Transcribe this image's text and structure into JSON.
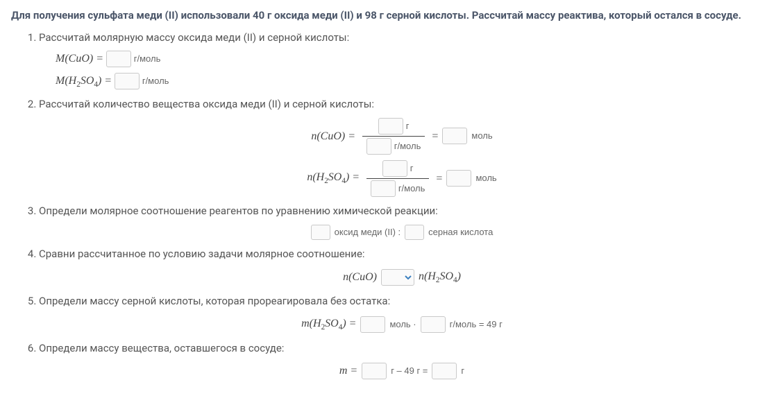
{
  "title": "Для получения сульфата меди (II) использовали 40 г оксида меди (II) и 98 г серной кислоты. Рассчитай массу реактива, который остался в сосуде.",
  "step1": {
    "text": "Рассчитай молярную массу оксида меди (II) и серной кислоты:",
    "row1": {
      "lhs": "M(CuO) =",
      "unit": "г/моль"
    },
    "row2": {
      "lhs": "M(H",
      "sub": "2",
      "mid": "SO",
      "sub2": "4",
      "tail": ") =",
      "unit": "г/моль"
    }
  },
  "step2": {
    "text": "Рассчитай количество вещества оксида меди (II) и серной кислоты:",
    "frac1": {
      "lhs": "n(CuO) =",
      "num_unit": "г",
      "den_unit": "г/моль",
      "eq": "=",
      "res_unit": "моль"
    },
    "frac2": {
      "lhs1": "n(H",
      "sub": "2",
      "lhs2": "SO",
      "sub2": "4",
      "tail": ") =",
      "num_unit": "г",
      "den_unit": "г/моль",
      "eq": "=",
      "res_unit": "моль"
    }
  },
  "step3": {
    "text": "Определи молярное соотношение реагентов по уравнению химической реакции:",
    "label1": "оксид меди (II) :",
    "label2": "серная кислота"
  },
  "step4": {
    "text": "Сравни рассчитанное по условию задачи молярное соотношение:",
    "left": "n(CuO)",
    "right1": "n(H",
    "sub": "2",
    "right2": "SO",
    "sub2": "4",
    "tail": ")"
  },
  "step5": {
    "text": "Определи массу серной кислоты, которая прореагировала без остатка:",
    "lhs1": "m(H",
    "sub": "2",
    "lhs2": "SO",
    "sub2": "4",
    "tail": ") =",
    "unit1": "моль ·",
    "unit2": "г/моль = 49 г"
  },
  "step6": {
    "text": "Определи массу вещества, оставшегося в сосуде:",
    "lhs": "m =",
    "mid": "г – 49 г =",
    "end": "г"
  }
}
